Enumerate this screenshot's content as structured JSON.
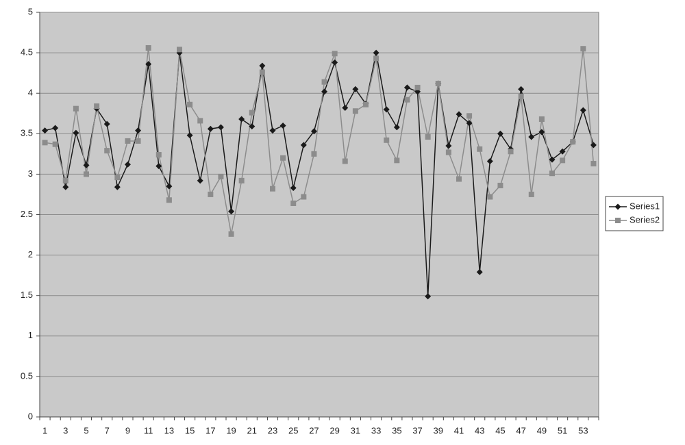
{
  "chart_data": {
    "type": "line",
    "categories": [
      1,
      null,
      3,
      null,
      5,
      null,
      7,
      null,
      9,
      null,
      11,
      null,
      13,
      null,
      15,
      null,
      17,
      null,
      19,
      null,
      21,
      null,
      23,
      null,
      25,
      null,
      27,
      null,
      29,
      null,
      31,
      null,
      33,
      null,
      35,
      null,
      37,
      null,
      39,
      null,
      41,
      null,
      43,
      null,
      45,
      null,
      47,
      null,
      49,
      null,
      51,
      null,
      53,
      null
    ],
    "series": [
      {
        "name": "Series1",
        "color": "#1a1a1a",
        "marker": "diamond",
        "values": [
          3.54,
          3.57,
          2.84,
          3.51,
          3.11,
          3.81,
          3.62,
          2.84,
          3.12,
          3.54,
          4.36,
          3.1,
          2.85,
          4.5,
          3.48,
          2.92,
          3.56,
          3.58,
          2.54,
          3.68,
          3.59,
          4.34,
          3.54,
          3.6,
          2.83,
          3.36,
          3.53,
          4.02,
          4.38,
          3.82,
          4.05,
          3.87,
          4.5,
          3.8,
          3.58,
          4.07,
          4.02,
          1.49,
          4.12,
          3.35,
          3.74,
          3.63,
          1.79,
          3.16,
          3.5,
          3.31,
          4.05,
          3.46,
          3.52,
          3.18,
          3.28,
          3.4,
          3.79,
          3.36
        ]
      },
      {
        "name": "Series2",
        "color": "#8c8c8c",
        "marker": "square",
        "values": [
          3.39,
          3.37,
          2.92,
          3.81,
          3.0,
          3.84,
          3.29,
          2.96,
          3.41,
          3.41,
          4.56,
          3.24,
          2.68,
          4.54,
          3.86,
          3.66,
          2.75,
          2.97,
          2.26,
          2.92,
          3.76,
          4.26,
          2.82,
          3.2,
          2.64,
          2.72,
          3.25,
          4.14,
          4.49,
          3.16,
          3.78,
          3.86,
          4.43,
          3.42,
          3.17,
          3.92,
          4.07,
          3.46,
          4.12,
          3.27,
          2.94,
          3.72,
          3.31,
          2.72,
          2.86,
          3.28,
          3.96,
          2.75,
          3.68,
          3.01,
          3.17,
          3.4,
          4.55,
          3.13
        ]
      }
    ],
    "ylim": [
      0,
      5
    ],
    "yticks": [
      0,
      0.5,
      1,
      1.5,
      2,
      2.5,
      3,
      3.5,
      4,
      4.5,
      5
    ],
    "grid": true,
    "legend": "right"
  }
}
